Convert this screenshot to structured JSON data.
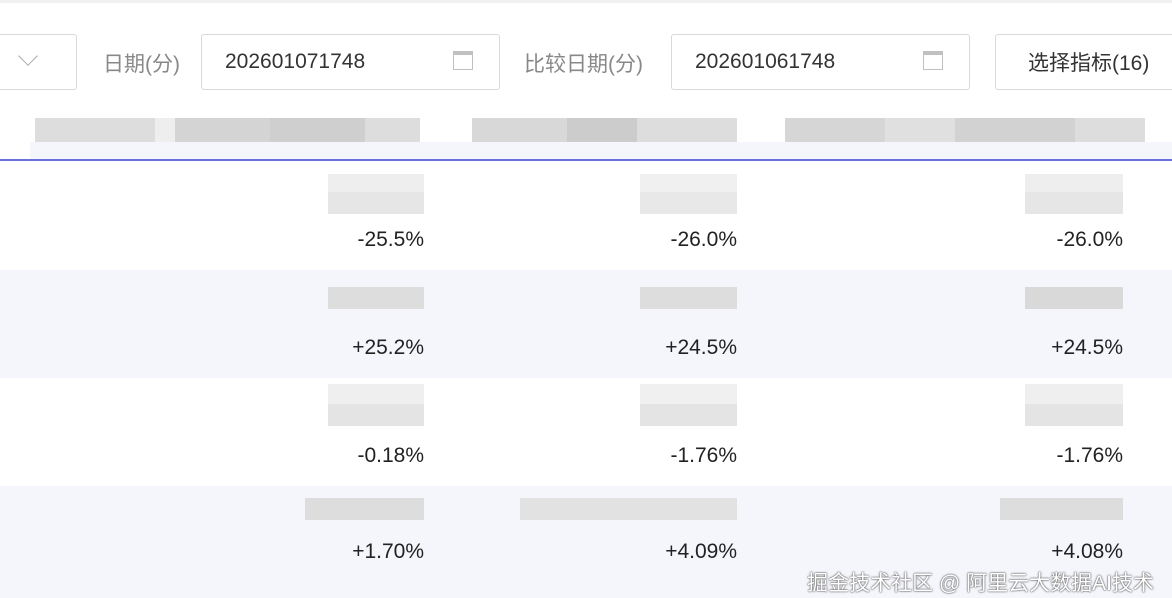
{
  "filters": {
    "date_label": "日期(分)",
    "date_value": "202601071748",
    "compare_label": "比较日期(分)",
    "compare_value": "202601061748",
    "metrics_button": "选择指标(16)"
  },
  "colors": {
    "accent": "#6b6fdb",
    "row_alt": "#f5f6fc"
  },
  "rows": [
    {
      "values": [
        "-25.5%",
        "-26.0%",
        "-26.0%"
      ]
    },
    {
      "values": [
        "+25.2%",
        "+24.5%",
        "+24.5%"
      ]
    },
    {
      "values": [
        "-0.18%",
        "-1.76%",
        "-1.76%"
      ]
    },
    {
      "values": [
        "+1.70%",
        "+4.09%",
        "+4.08%"
      ]
    }
  ],
  "watermark": "掘金技术社区 @ 阿里云大数据AI技术"
}
